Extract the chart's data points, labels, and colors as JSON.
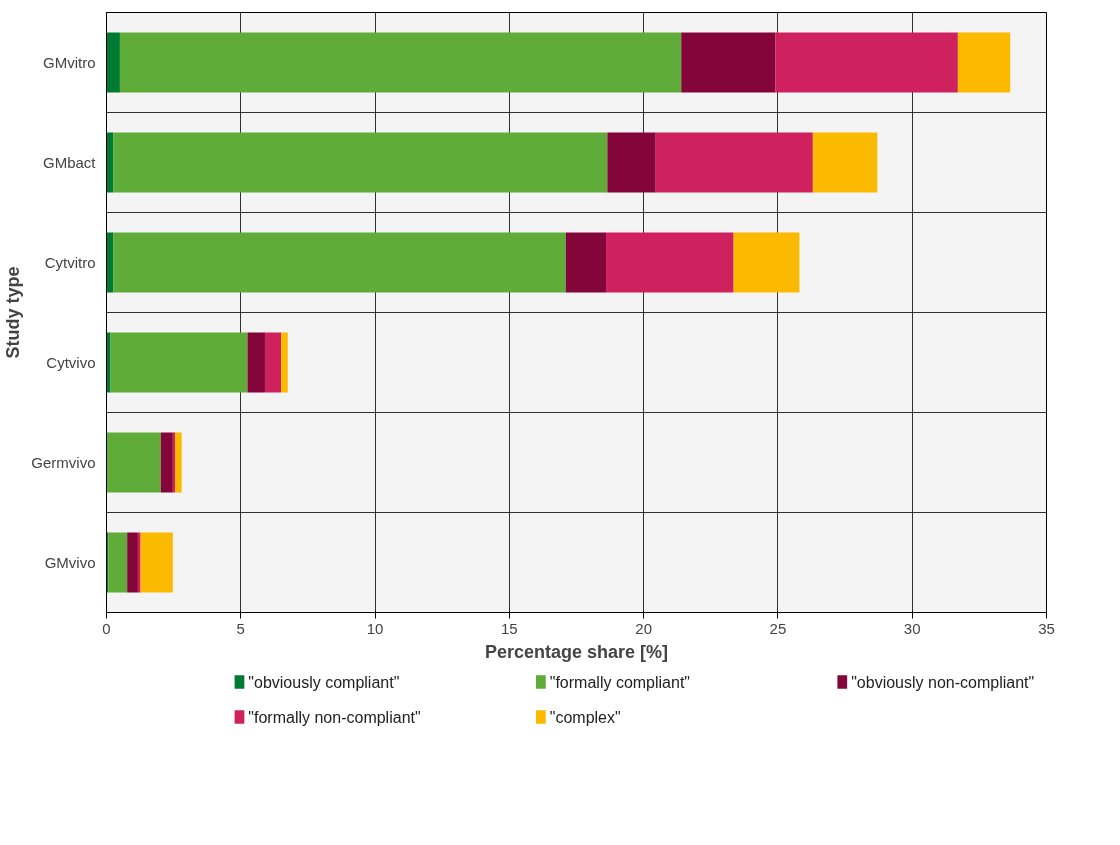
{
  "chart_data": {
    "type": "bar",
    "orientation": "horizontal",
    "stacked": true,
    "xlabel": "Percentage share [%]",
    "ylabel": "Study type",
    "categories": [
      "GMvitro",
      "GMbact",
      "Cytvitro",
      "Cytvivo",
      "Germvivo",
      "GMvivo"
    ],
    "series": [
      {
        "name": "\"obviously compliant\"",
        "color": "#007a33",
        "values": [
          0.5,
          0.25,
          0.25,
          0.15,
          0.02,
          0.07
        ]
      },
      {
        "name": "\"formally compliant\"",
        "color": "#5fad38",
        "values": [
          20.9,
          18.4,
          16.85,
          5.1,
          2.0,
          0.7
        ]
      },
      {
        "name": "\"obviously non-compliant\"",
        "color": "#83053a",
        "values": [
          3.5,
          1.8,
          1.5,
          0.65,
          0.45,
          0.4
        ]
      },
      {
        "name": "\"formally non-compliant\"",
        "color": "#cf215d",
        "values": [
          6.8,
          5.85,
          4.75,
          0.6,
          0.08,
          0.1
        ]
      },
      {
        "name": "\"complex\"",
        "color": "#fbba00",
        "values": [
          1.95,
          2.4,
          2.45,
          0.25,
          0.25,
          1.2
        ]
      }
    ],
    "xlim": [
      0,
      35
    ],
    "xticks": [
      0,
      5,
      10,
      15,
      20,
      25,
      30,
      35
    ],
    "grid": true,
    "legend": "bottom"
  }
}
